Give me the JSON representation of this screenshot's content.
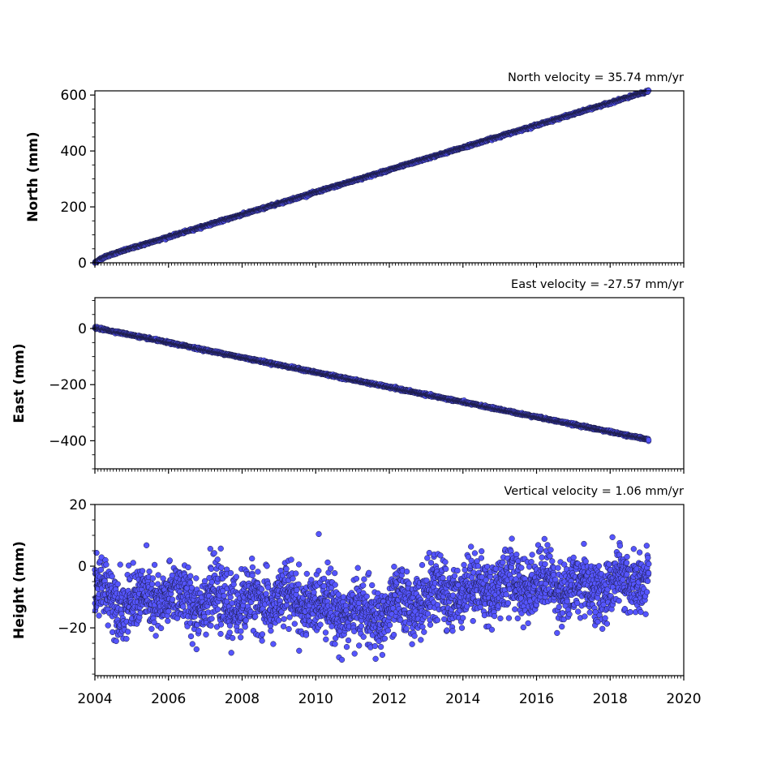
{
  "colors": {
    "marker_fill": "#5555ff",
    "marker_edge": "#1a1a40",
    "axes": "#000000"
  },
  "chart_data": [
    {
      "type": "scatter",
      "title": "North velocity = 35.74 mm/yr",
      "ylabel": "North (mm)",
      "xlim": [
        2004,
        2020
      ],
      "ylim": [
        0,
        615
      ],
      "yticks": [
        0,
        200,
        400,
        600
      ],
      "ytick_labels": [
        "0",
        "200",
        "400",
        "600"
      ],
      "x_start": 2004.0,
      "x_end": 2019.05,
      "y_start": 0,
      "y_end": 610,
      "velocity": 35.74,
      "noise": 2,
      "early_transient": 14,
      "grid": false
    },
    {
      "type": "scatter",
      "title": "East velocity = -27.57 mm/yr",
      "ylabel": "East (mm)",
      "xlim": [
        2004,
        2020
      ],
      "ylim": [
        -500,
        110
      ],
      "yticks": [
        -400,
        -200,
        0
      ],
      "ytick_labels": [
        "−400",
        "−200",
        "0"
      ],
      "x_start": 2004.0,
      "x_end": 2019.05,
      "y_start": 3,
      "y_end": -396,
      "velocity": -27.57,
      "noise": 2,
      "early_transient": 0,
      "grid": false
    },
    {
      "type": "scatter",
      "title": "Vertical velocity = 1.06 mm/yr",
      "ylabel": "Height (mm)",
      "xlim": [
        2004,
        2020
      ],
      "ylim": [
        -35.5,
        20
      ],
      "yticks": [
        -20,
        0,
        20
      ],
      "ytick_labels": [
        "−20",
        "0",
        "20"
      ],
      "xticks": [
        2004,
        2006,
        2008,
        2010,
        2012,
        2014,
        2016,
        2018,
        2020
      ],
      "xtick_labels": [
        "2004",
        "2006",
        "2008",
        "2010",
        "2012",
        "2014",
        "2016",
        "2018",
        "2020"
      ],
      "x_start": 2004.0,
      "x_end": 2019.05,
      "velocity": 1.06,
      "mean_profile": [
        [
          2004.0,
          -8
        ],
        [
          2005.0,
          -12
        ],
        [
          2006.0,
          -10
        ],
        [
          2007.0,
          -11
        ],
        [
          2008.0,
          -12
        ],
        [
          2009.0,
          -11
        ],
        [
          2010.0,
          -12
        ],
        [
          2011.0,
          -15
        ],
        [
          2011.5,
          -17
        ],
        [
          2012.0,
          -14
        ],
        [
          2013.0,
          -10
        ],
        [
          2014.0,
          -8
        ],
        [
          2015.0,
          -6
        ],
        [
          2016.0,
          -5
        ],
        [
          2017.0,
          -7
        ],
        [
          2018.0,
          -7
        ],
        [
          2019.05,
          -3
        ]
      ],
      "noise": 5,
      "grid": false
    }
  ]
}
